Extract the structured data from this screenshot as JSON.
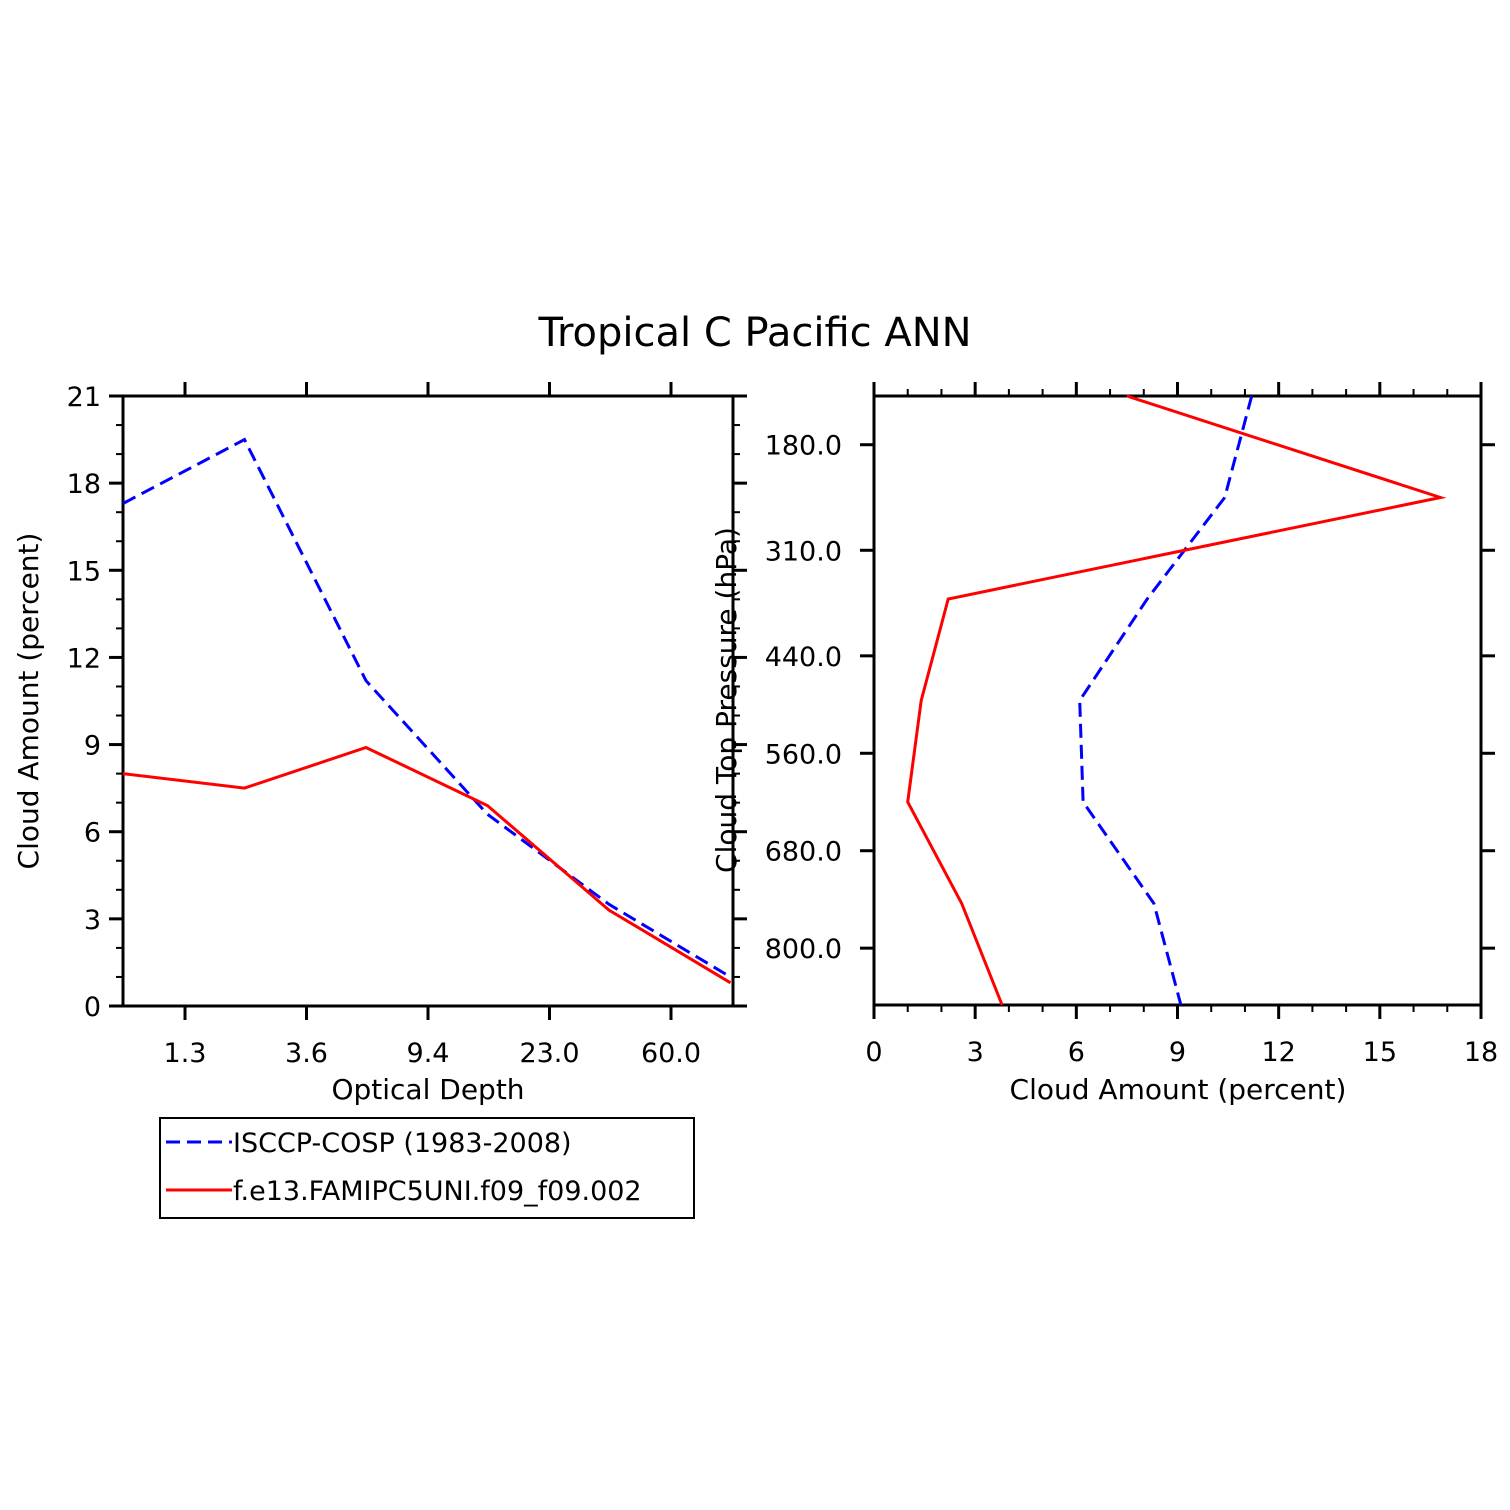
{
  "title": "Tropical C Pacific ANN",
  "colors": {
    "obs": "#0000ff",
    "model": "#ff0000"
  },
  "legend": {
    "entries": [
      {
        "label": "ISCCP-COSP (1983-2008)",
        "style": "dashed",
        "color": "#0000ff"
      },
      {
        "label": "f.e13.FAMIPC5UNI.f09_f09.002",
        "style": "solid",
        "color": "#ff0000"
      }
    ],
    "placement": "below-left-panel"
  },
  "chart_data": [
    {
      "type": "line",
      "panel": "left",
      "xlabel": "Optical Depth",
      "ylabel": "Cloud Amount (percent)",
      "x_tick_labels": [
        "1.3",
        "3.6",
        "9.4",
        "23.0",
        "60.0"
      ],
      "y_ticks": [
        0,
        3,
        6,
        9,
        12,
        15,
        18,
        21
      ],
      "ylim": [
        0,
        21
      ],
      "x": [
        0.3,
        1.3,
        2.3,
        3.3,
        4.3,
        5.3
      ],
      "x_note_bins": "ordinal bins; tick labels at bin boundaries",
      "series": [
        {
          "name": "ISCCP-COSP (1983-2008)",
          "values": [
            17.3,
            19.5,
            11.2,
            6.6,
            3.5,
            1.0
          ]
        },
        {
          "name": "f.e13.FAMIPC5UNI.f09_f09.002",
          "values": [
            8.0,
            7.5,
            8.9,
            6.9,
            3.3,
            0.8
          ]
        }
      ],
      "grid": false
    },
    {
      "type": "line",
      "panel": "right",
      "xlabel": "Cloud Amount (percent)",
      "ylabel": "Cloud Top Pressure (hPa)",
      "x_ticks": [
        0,
        3,
        6,
        9,
        12,
        15,
        18
      ],
      "xlim": [
        0,
        18
      ],
      "y_tick_labels": [
        "180.0",
        "310.0",
        "440.0",
        "560.0",
        "680.0",
        "800.0"
      ],
      "y_ticks": [
        180,
        310,
        440,
        560,
        680,
        800
      ],
      "y_axis_order": "pressure increasing downward",
      "series": [
        {
          "name": "ISCCP-COSP (1983-2008)",
          "points": [
            [
              11.2,
              120
            ],
            [
              10.4,
              245
            ],
            [
              8.1,
              370
            ],
            [
              6.1,
              495
            ],
            [
              6.2,
              620
            ],
            [
              8.3,
              745
            ],
            [
              9.1,
              870
            ]
          ]
        },
        {
          "name": "f.e13.FAMIPC5UNI.f09_f09.002",
          "points": [
            [
              7.5,
              120
            ],
            [
              16.8,
              245
            ],
            [
              2.2,
              370
            ],
            [
              1.4,
              495
            ],
            [
              1.0,
              620
            ],
            [
              2.6,
              745
            ],
            [
              3.8,
              870
            ]
          ]
        }
      ],
      "grid": false
    }
  ]
}
